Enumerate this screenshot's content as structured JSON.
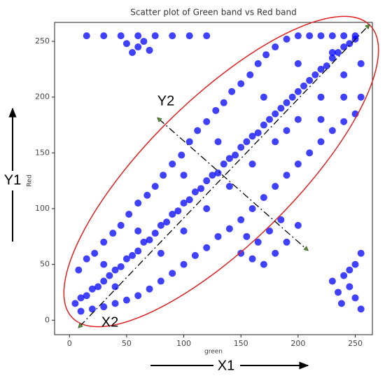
{
  "chart_data": {
    "type": "scatter",
    "title": "Scatter plot of Green band vs Red band",
    "x_label": "green",
    "y_label": "Red",
    "color": "#0000ff",
    "xlim": [
      -13,
      265
    ],
    "ylim": [
      -13,
      267
    ],
    "xticks": [
      0,
      50,
      100,
      150,
      200,
      250
    ],
    "yticks": [
      0,
      50,
      100,
      150,
      200,
      250
    ],
    "grid": false,
    "annotations": [
      "Y1",
      "X1",
      "Y2",
      "X2"
    ],
    "x": [
      5,
      10,
      15,
      20,
      25,
      30,
      35,
      40,
      45,
      50,
      55,
      60,
      65,
      70,
      75,
      80,
      85,
      90,
      95,
      100,
      105,
      110,
      115,
      120,
      125,
      130,
      135,
      140,
      145,
      150,
      155,
      160,
      165,
      170,
      175,
      180,
      185,
      190,
      195,
      200,
      205,
      210,
      215,
      220,
      225,
      230,
      235,
      240,
      245,
      250,
      8,
      15,
      22,
      30,
      38,
      45,
      52,
      60,
      68,
      75,
      82,
      90,
      98,
      105,
      112,
      120,
      128,
      135,
      142,
      150,
      158,
      165,
      172,
      180,
      190,
      200,
      210,
      220,
      230,
      240,
      250,
      10,
      20,
      30,
      40,
      50,
      60,
      70,
      80,
      90,
      100,
      110,
      120,
      130,
      140,
      150,
      160,
      170,
      180,
      190,
      200,
      210,
      220,
      230,
      240,
      250,
      255,
      255,
      150,
      160,
      170,
      180,
      190,
      175,
      165,
      185,
      200,
      155,
      15,
      30,
      45,
      60,
      75,
      90,
      105,
      120,
      50,
      60,
      70,
      65,
      55,
      230,
      235,
      240,
      245,
      250,
      250,
      255,
      255,
      238,
      245,
      60,
      80,
      100,
      120,
      140,
      160,
      180,
      200,
      220,
      240,
      40,
      30,
      100,
      130,
      170,
      200,
      230,
      240,
      220,
      190
    ],
    "values": [
      15,
      20,
      22,
      28,
      30,
      35,
      40,
      45,
      48,
      55,
      58,
      62,
      70,
      72,
      78,
      85,
      88,
      95,
      98,
      105,
      108,
      115,
      118,
      125,
      130,
      132,
      140,
      145,
      148,
      155,
      160,
      165,
      168,
      175,
      180,
      185,
      190,
      195,
      200,
      205,
      210,
      215,
      220,
      225,
      228,
      235,
      240,
      245,
      248,
      252,
      45,
      55,
      60,
      70,
      78,
      85,
      95,
      105,
      112,
      120,
      130,
      140,
      148,
      160,
      170,
      178,
      188,
      195,
      205,
      212,
      220,
      230,
      238,
      245,
      252,
      255,
      255,
      255,
      255,
      255,
      255,
      8,
      10,
      12,
      15,
      18,
      22,
      28,
      35,
      42,
      50,
      58,
      65,
      75,
      82,
      90,
      100,
      110,
      120,
      130,
      140,
      150,
      160,
      170,
      178,
      185,
      200,
      230,
      60,
      55,
      50,
      60,
      70,
      80,
      70,
      90,
      85,
      75,
      255,
      255,
      255,
      255,
      255,
      255,
      255,
      255,
      248,
      245,
      242,
      250,
      240,
      35,
      25,
      40,
      30,
      20,
      50,
      10,
      60,
      15,
      45,
      80,
      60,
      80,
      100,
      120,
      140,
      160,
      180,
      200,
      220,
      30,
      50,
      130,
      160,
      200,
      230,
      240,
      200,
      180,
      170
    ]
  }
}
